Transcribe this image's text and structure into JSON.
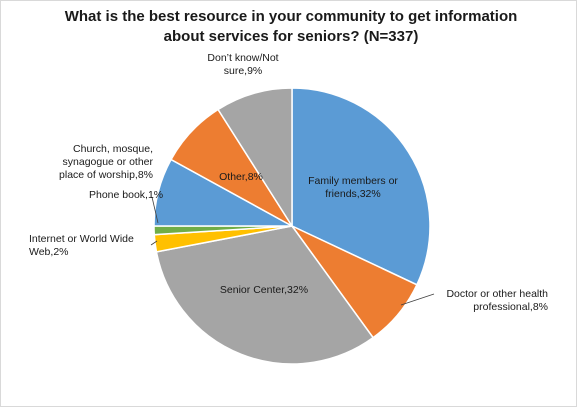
{
  "chart_data": {
    "type": "pie",
    "title": "What is the best resource in your community to get information about services for seniors?  (N=337)",
    "title_lines": [
      "What is the best resource in your community to get information",
      "about services for seniors?  (N=337)"
    ],
    "start_angle_deg": 0,
    "slices": [
      {
        "name": "Family members or friends",
        "value": 32,
        "color": "#5b9bd5",
        "label_lines": [
          "Family members or",
          "friends,32%"
        ],
        "label_inside": true
      },
      {
        "name": "Doctor or other health professional",
        "value": 8,
        "color": "#ed7d31",
        "label_lines": [
          "Doctor or other health",
          "professional,8%"
        ],
        "label_inside": false
      },
      {
        "name": "Senior Center",
        "value": 32,
        "color": "#a5a5a5",
        "label_lines": [
          "Senior Center,32%"
        ],
        "label_inside": true
      },
      {
        "name": "Internet or World Wide Web",
        "value": 2,
        "color": "#ffc000",
        "label_lines": [
          "Internet or World Wide",
          "Web,2%"
        ],
        "label_inside": false
      },
      {
        "name": "Phone book",
        "value": 1,
        "color": "#70ad47",
        "label_lines": [
          "Phone book,1%"
        ],
        "label_inside": false
      },
      {
        "name": "Church, mosque, synagogue or other place of worship",
        "value": 8,
        "color": "#5b9bd5",
        "label_lines": [
          "Church, mosque,",
          "synagogue or other",
          "place of worship,8%"
        ],
        "label_inside": false
      },
      {
        "name": "Other",
        "value": 8,
        "color": "#ed7d31",
        "label_lines": [
          "Other,8%"
        ],
        "label_inside": true
      },
      {
        "name": "Don't know/Not sure",
        "value": 9,
        "color": "#a5a5a5",
        "label_lines": [
          "Don’t know/Not",
          "sure,9%"
        ],
        "label_inside": false
      }
    ]
  }
}
